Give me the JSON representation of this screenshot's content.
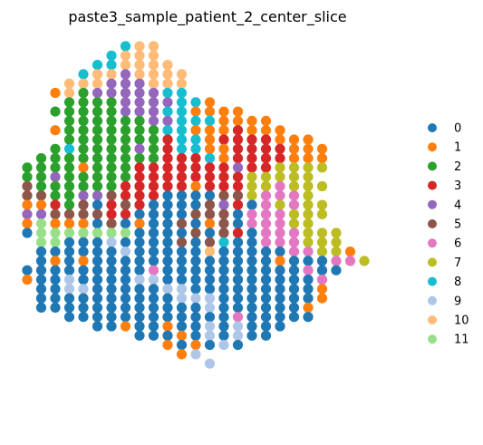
{
  "chart_data": {
    "type": "scatter",
    "title": "paste3_sample_patient_2_center_slice",
    "xlabel": "",
    "ylabel": "",
    "grid": false,
    "axes_visible": false,
    "legend_placement": "right",
    "categories": [
      "0",
      "1",
      "2",
      "3",
      "4",
      "5",
      "6",
      "7",
      "8",
      "9",
      "10",
      "11"
    ],
    "colors": [
      "#1f77b4",
      "#ff7f0e",
      "#2ca02c",
      "#d62728",
      "#9467bd",
      "#8c564b",
      "#e377c2",
      "#bcbd22",
      "#17becf",
      "#aec7e8",
      "#ffbb78",
      "#98df8a"
    ],
    "spot_grid": {
      "rows": [
        {
          "row": 0,
          "start": 7,
          "clusters": [
            8,
            10,
            10
          ]
        },
        {
          "row": 1,
          "start": 6,
          "clusters": [
            8,
            10,
            10,
            10
          ]
        },
        {
          "row": 2,
          "start": 5,
          "clusters": [
            8,
            8,
            10,
            10,
            10,
            10
          ]
        },
        {
          "row": 3,
          "start": 4,
          "clusters": [
            8,
            10,
            10,
            4,
            10,
            10,
            10,
            10
          ]
        },
        {
          "row": 4,
          "start": 3,
          "clusters": [
            10,
            10,
            10,
            4,
            4,
            4,
            10,
            10,
            10
          ]
        },
        {
          "row": 5,
          "start": 2,
          "clusters": [
            1,
            10,
            2,
            4,
            4,
            4,
            4,
            4,
            8,
            8
          ]
        },
        {
          "row": 6,
          "start": 3,
          "clusters": [
            2,
            2,
            2,
            2,
            4,
            4,
            4,
            4,
            8,
            8,
            1
          ]
        },
        {
          "row": 7,
          "start": 2,
          "clusters": [
            2,
            2,
            2,
            2,
            2,
            4,
            4,
            4,
            8,
            8,
            1,
            1,
            1,
            1
          ]
        },
        {
          "row": 8,
          "start": 3,
          "clusters": [
            2,
            2,
            2,
            2,
            2,
            2,
            4,
            4,
            8,
            8,
            8,
            1,
            1,
            1,
            1
          ]
        },
        {
          "row": 9,
          "start": 2,
          "clusters": [
            1,
            2,
            2,
            2,
            2,
            2,
            2,
            2,
            8,
            8,
            1,
            1,
            1,
            3,
            1,
            1,
            1
          ]
        },
        {
          "row": 10,
          "start": 3,
          "clusters": [
            2,
            2,
            2,
            2,
            2,
            2,
            2,
            3,
            8,
            8,
            1,
            3,
            3,
            3,
            3,
            1,
            1,
            1
          ]
        },
        {
          "row": 11,
          "start": 2,
          "clusters": [
            2,
            8,
            2,
            2,
            2,
            2,
            4,
            2,
            3,
            8,
            8,
            1,
            1,
            3,
            3,
            3,
            3,
            1,
            1,
            1
          ]
        },
        {
          "row": 12,
          "start": 1,
          "clusters": [
            2,
            2,
            2,
            2,
            2,
            2,
            2,
            2,
            2,
            3,
            3,
            3,
            8,
            1,
            3,
            3,
            3,
            3,
            1,
            1,
            1
          ]
        },
        {
          "row": 13,
          "start": 0,
          "clusters": [
            2,
            2,
            2,
            2,
            1,
            2,
            2,
            2,
            3,
            3,
            3,
            3,
            3,
            3,
            3,
            4,
            3,
            3,
            7,
            7,
            7,
            7
          ]
        },
        {
          "row": 14,
          "start": 0,
          "clusters": [
            2,
            2,
            4,
            2,
            2,
            2,
            2,
            2,
            3,
            3,
            3,
            3,
            3,
            3,
            3,
            3,
            7,
            7,
            7,
            7,
            7
          ]
        },
        {
          "row": 15,
          "start": 0,
          "clusters": [
            5,
            2,
            2,
            2,
            2,
            2,
            2,
            3,
            3,
            3,
            3,
            3,
            1,
            3,
            3,
            3,
            7,
            7,
            6,
            7,
            7,
            7
          ]
        },
        {
          "row": 16,
          "start": 0,
          "clusters": [
            5,
            5,
            2,
            2,
            4,
            4,
            5,
            3,
            3,
            3,
            0,
            0,
            0,
            0,
            5,
            5,
            7,
            6,
            6,
            6,
            7
          ]
        },
        {
          "row": 17,
          "start": 0,
          "clusters": [
            1,
            1,
            3,
            2,
            5,
            0,
            3,
            5,
            3,
            0,
            0,
            0,
            0,
            5,
            4,
            3,
            0,
            6,
            7,
            6,
            7,
            7
          ]
        },
        {
          "row": 18,
          "start": 0,
          "clusters": [
            4,
            4,
            5,
            5,
            5,
            5,
            3,
            3,
            0,
            0,
            0,
            0,
            5,
            5,
            5,
            0,
            6,
            6,
            6,
            7,
            7,
            7
          ]
        },
        {
          "row": 19,
          "start": 0,
          "clusters": [
            1,
            11,
            1,
            1,
            1,
            0,
            5,
            0,
            1,
            0,
            0,
            5,
            0,
            1,
            5,
            0,
            6,
            6,
            6,
            7,
            7
          ]
        },
        {
          "row": 20,
          "start": 0,
          "clusters": [
            0,
            11,
            11,
            11,
            11,
            11,
            11,
            11,
            0,
            0,
            0,
            0,
            5,
            0,
            5,
            3,
            0,
            6,
            6,
            6,
            7,
            7,
            7
          ]
        },
        {
          "row": 21,
          "start": 1,
          "clusters": [
            11,
            11,
            0,
            0,
            0,
            9,
            0,
            0,
            0,
            0,
            5,
            0,
            5,
            8,
            0,
            0,
            6,
            6,
            6,
            7,
            7,
            7
          ]
        },
        {
          "row": 22,
          "start": 1,
          "clusters": [
            0,
            0,
            0,
            0,
            0,
            0,
            9,
            0,
            0,
            0,
            0,
            0,
            10,
            0,
            0,
            0,
            0,
            0,
            6,
            6,
            7,
            7,
            1
          ]
        },
        {
          "row": 23,
          "start": 1,
          "clusters": [
            0,
            1,
            0,
            1,
            0,
            0,
            0,
            0,
            0,
            0,
            0,
            0,
            0,
            0,
            0,
            0,
            0,
            1,
            0,
            0,
            0,
            6,
            6,
            7
          ]
        },
        {
          "row": 24,
          "start": 0,
          "clusters": [
            0,
            0,
            0,
            0,
            0,
            0,
            0,
            0,
            0,
            6,
            0,
            0,
            0,
            0,
            0,
            0,
            0,
            0,
            0,
            0,
            6,
            0,
            0
          ]
        },
        {
          "row": 25,
          "start": 0,
          "clusters": [
            1,
            0,
            0,
            9,
            0,
            0,
            0,
            0,
            9,
            9,
            0,
            0,
            0,
            0,
            0,
            0,
            0,
            0,
            0,
            0,
            0,
            6
          ]
        },
        {
          "row": 26,
          "start": 1,
          "clusters": [
            0,
            0,
            9,
            9,
            0,
            0,
            0,
            0,
            0,
            9,
            9,
            0,
            0,
            0,
            0,
            0,
            0,
            0,
            0,
            0,
            1
          ]
        },
        {
          "row": 27,
          "start": 1,
          "clusters": [
            0,
            0,
            0,
            0,
            0,
            0,
            0,
            0,
            0,
            0,
            9,
            9,
            9,
            0,
            0,
            0,
            0,
            0,
            0,
            0,
            1
          ]
        },
        {
          "row": 28,
          "start": 1,
          "clusters": [
            0,
            0,
            0,
            0,
            0,
            0,
            0,
            0,
            0,
            0,
            0,
            0,
            9,
            0,
            0,
            0,
            0,
            0,
            0,
            1
          ]
        },
        {
          "row": 29,
          "start": 3,
          "clusters": [
            0,
            0,
            0,
            0,
            0,
            0,
            0,
            0,
            0,
            0,
            0,
            0,
            6,
            0,
            0,
            0,
            0,
            0
          ]
        },
        {
          "row": 30,
          "start": 5,
          "clusters": [
            0,
            0,
            1,
            0,
            0,
            1,
            0,
            0,
            9,
            0,
            9,
            0,
            0,
            0
          ]
        },
        {
          "row": 31,
          "start": 8,
          "clusters": [
            0,
            0,
            0,
            1,
            0,
            9,
            0,
            9,
            0,
            0
          ]
        },
        {
          "row": 32,
          "start": 10,
          "clusters": [
            1,
            0,
            1,
            0,
            9,
            0
          ]
        },
        {
          "row": 33,
          "start": 11,
          "clusters": [
            1,
            9
          ]
        },
        {
          "row": 34,
          "start": 13,
          "clusters": [
            9
          ]
        }
      ]
    }
  }
}
